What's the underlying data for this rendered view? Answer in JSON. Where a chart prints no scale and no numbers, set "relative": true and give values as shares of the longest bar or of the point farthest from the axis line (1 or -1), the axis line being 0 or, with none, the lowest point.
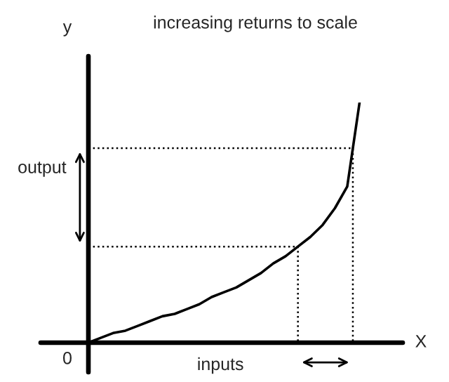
{
  "chart_data": {
    "type": "line",
    "title": "increasing returns to scale",
    "xlabel": "X",
    "ylabel": "y",
    "relative": true,
    "categories": [
      null,
      null,
      null,
      null,
      null,
      null,
      null,
      null,
      null,
      null,
      null,
      null,
      null,
      null,
      null,
      null,
      null,
      null,
      null,
      null,
      null,
      null,
      null,
      null,
      null,
      null
    ],
    "series": [
      {
        "color": "#000000",
        "values": [
          0,
          0.02,
          0.04,
          0.05,
          0.07,
          0.09,
          0.11,
          0.12,
          0.14,
          0.16,
          0.19,
          0.21,
          0.23,
          0.26,
          0.29,
          0.33,
          0.36,
          0.4,
          0.44,
          0.49,
          0.56,
          0.65,
          1,
          null,
          null,
          null
        ]
      }
    ],
    "ref_lines": [
      {
        "axis": "y",
        "value": 0.4,
        "line_style": "dotted",
        "color": "#000000"
      },
      {
        "axis": "y",
        "value": 0.81,
        "line_style": "dotted",
        "color": "#000000"
      }
    ],
    "annotations": [
      "output",
      "inputs",
      "0"
    ],
    "marker": "none",
    "line_style": "solid"
  }
}
